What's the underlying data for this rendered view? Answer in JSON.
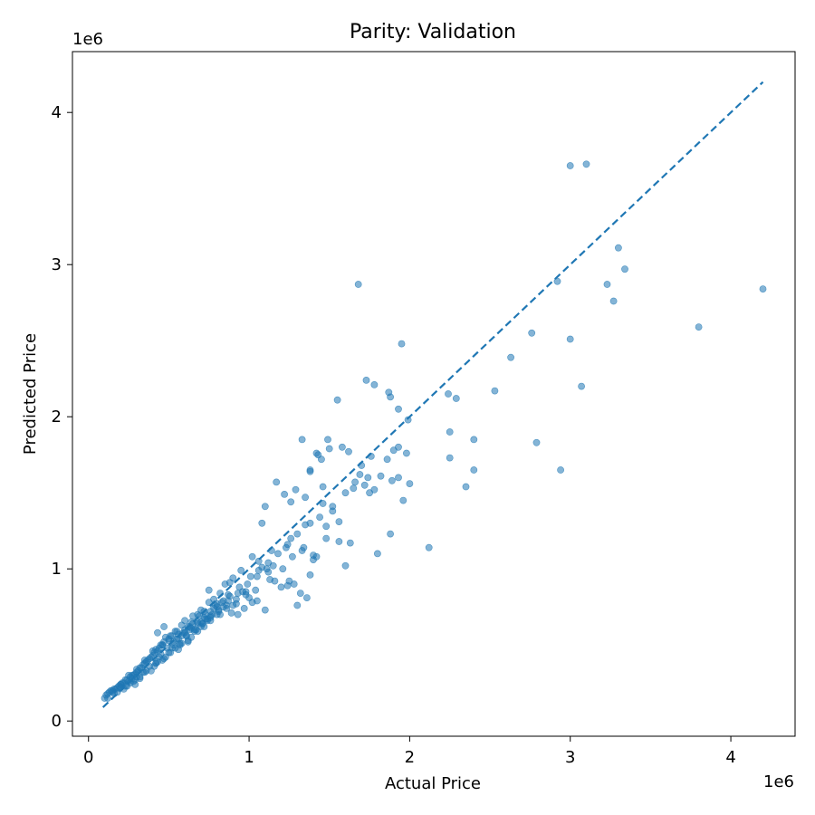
{
  "chart_data": {
    "type": "scatter",
    "title": "Parity: Validation",
    "xlabel": "Actual Price",
    "ylabel": "Predicted Price",
    "x_offset_label": "1e6",
    "y_offset_label": "1e6",
    "xlim": [
      -100000,
      4400000
    ],
    "ylim": [
      -100000,
      4400000
    ],
    "x_ticks": [
      0,
      1000000,
      2000000,
      3000000,
      4000000
    ],
    "x_tick_labels": [
      "0",
      "1",
      "2",
      "3",
      "4"
    ],
    "y_ticks": [
      0,
      1000000,
      2000000,
      3000000,
      4000000
    ],
    "y_tick_labels": [
      "0",
      "1",
      "2",
      "3",
      "4"
    ],
    "grid": false,
    "legend": "none",
    "colors": {
      "points": "#1f77b4",
      "parity_line": "#1f77b4"
    },
    "parity_line": {
      "x": [
        90000,
        4200000
      ],
      "y": [
        90000,
        4200000
      ],
      "style": "dashed"
    },
    "points": {
      "x": [
        3000000,
        3100000,
        1680000,
        3300000,
        3340000,
        3230000,
        3270000,
        2920000,
        4200000,
        3800000,
        2760000,
        3000000,
        1950000,
        2630000,
        3070000,
        1730000,
        1780000,
        1880000,
        1930000,
        2240000,
        2290000,
        1550000,
        2530000,
        1870000,
        1990000,
        2250000,
        2400000,
        2250000,
        2790000,
        2350000,
        2400000,
        2940000,
        1490000,
        1430000,
        1380000,
        1450000,
        1500000,
        1580000,
        1620000,
        1700000,
        1760000,
        1860000,
        1900000,
        1930000,
        1980000,
        2000000,
        1460000,
        1690000,
        1650000,
        1720000,
        1750000,
        1820000,
        1960000,
        1890000,
        1780000,
        1930000,
        2120000,
        1600000,
        1800000,
        1630000,
        1880000,
        1560000,
        1330000,
        1420000,
        1380000,
        1290000,
        1350000,
        1460000,
        1520000,
        1560000,
        1170000,
        1220000,
        1260000,
        1100000,
        1080000,
        1350000,
        1260000,
        1330000,
        1230000,
        1400000,
        1480000,
        1420000,
        1380000,
        1210000,
        1130000,
        1110000,
        1120000,
        1240000,
        1320000,
        1300000,
        1360000,
        1280000,
        1250000,
        1400000,
        950000,
        1020000,
        1060000,
        1140000,
        900000,
        880000,
        940000,
        1010000,
        1080000,
        1160000,
        1200000,
        980000,
        920000,
        1050000,
        1100000,
        1000000,
        850000,
        820000,
        780000,
        750000,
        800000,
        870000,
        930000,
        970000,
        1020000,
        760000,
        720000,
        700000,
        680000,
        650000,
        740000,
        790000,
        840000,
        890000,
        620000,
        600000,
        580000,
        560000,
        540000,
        520000,
        640000,
        690000,
        730000,
        770000,
        810000,
        860000,
        500000,
        480000,
        460000,
        440000,
        420000,
        470000,
        510000,
        550000,
        590000,
        630000,
        670000,
        710000,
        400000,
        380000,
        360000,
        340000,
        320000,
        350000,
        390000,
        430000,
        450000,
        490000,
        530000,
        570000,
        610000,
        300000,
        280000,
        260000,
        240000,
        220000,
        200000,
        180000,
        160000,
        140000,
        120000,
        100000,
        250000,
        270000,
        290000,
        310000,
        330000,
        370000,
        410000,
        230000,
        210000,
        190000,
        170000,
        150000,
        130000,
        110000,
        440000,
        460000,
        520000,
        560000,
        600000,
        640000,
        680000,
        720000,
        760000,
        800000,
        840000,
        880000,
        600000,
        650000,
        700000,
        750000,
        550000,
        500000,
        450000,
        400000,
        350000,
        300000,
        250000,
        200000,
        150000,
        480000,
        530000,
        580000,
        630000,
        680000,
        730000,
        780000,
        830000,
        380000,
        420000,
        340000,
        300000,
        260000,
        220000,
        180000,
        560000,
        620000,
        660000,
        700000,
        740000,
        800000,
        860000,
        920000,
        980000,
        1040000,
        640000,
        580000,
        500000,
        420000,
        460000,
        360000,
        320000,
        280000,
        240000,
        200000,
        160000,
        120000,
        680000,
        720000,
        760000,
        820000,
        900000,
        960000,
        1060000,
        1120000,
        1180000,
        1240000,
        1300000,
        1380000,
        1440000,
        1520000,
        1600000,
        1660000,
        1740000,
        620000,
        540000,
        470000,
        410000,
        350000,
        290000,
        230000,
        390000,
        430000,
        510000,
        570000,
        610000,
        660000,
        710000,
        760000,
        810000,
        870000,
        930000,
        990000,
        1050000,
        1150000,
        1270000,
        1340000,
        1480000,
        430000,
        470000,
        320000,
        290000,
        270000
      ],
      "y": [
        3650000,
        3660000,
        2870000,
        3110000,
        2970000,
        2870000,
        2760000,
        2890000,
        2840000,
        2590000,
        2550000,
        2510000,
        2480000,
        2390000,
        2200000,
        2240000,
        2210000,
        2130000,
        2050000,
        2150000,
        2120000,
        2110000,
        2170000,
        2160000,
        1980000,
        1900000,
        1850000,
        1730000,
        1830000,
        1540000,
        1650000,
        1650000,
        1850000,
        1750000,
        1650000,
        1720000,
        1790000,
        1800000,
        1770000,
        1680000,
        1740000,
        1720000,
        1780000,
        1800000,
        1760000,
        1560000,
        1540000,
        1620000,
        1530000,
        1550000,
        1500000,
        1610000,
        1450000,
        1580000,
        1520000,
        1600000,
        1140000,
        1020000,
        1100000,
        1170000,
        1230000,
        1180000,
        1850000,
        1760000,
        1640000,
        1520000,
        1470000,
        1430000,
        1380000,
        1310000,
        1570000,
        1490000,
        1440000,
        1410000,
        1300000,
        1290000,
        1200000,
        1120000,
        1140000,
        1090000,
        1200000,
        1080000,
        960000,
        1000000,
        930000,
        1000000,
        980000,
        890000,
        840000,
        760000,
        810000,
        900000,
        920000,
        1060000,
        990000,
        1080000,
        1050000,
        1120000,
        940000,
        910000,
        880000,
        950000,
        1010000,
        920000,
        880000,
        850000,
        770000,
        790000,
        730000,
        810000,
        900000,
        840000,
        800000,
        860000,
        770000,
        830000,
        700000,
        740000,
        780000,
        690000,
        720000,
        650000,
        700000,
        640000,
        670000,
        760000,
        750000,
        710000,
        620000,
        600000,
        630000,
        570000,
        590000,
        560000,
        650000,
        690000,
        670000,
        700000,
        720000,
        740000,
        530000,
        550000,
        500000,
        480000,
        470000,
        520000,
        560000,
        540000,
        580000,
        620000,
        600000,
        640000,
        430000,
        410000,
        390000,
        370000,
        350000,
        380000,
        420000,
        460000,
        440000,
        480000,
        520000,
        500000,
        560000,
        320000,
        300000,
        290000,
        270000,
        250000,
        240000,
        220000,
        210000,
        200000,
        180000,
        150000,
        260000,
        280000,
        310000,
        330000,
        350000,
        400000,
        450000,
        270000,
        250000,
        230000,
        210000,
        200000,
        190000,
        170000,
        420000,
        500000,
        480000,
        540000,
        580000,
        610000,
        650000,
        680000,
        720000,
        750000,
        790000,
        820000,
        660000,
        690000,
        730000,
        780000,
        590000,
        540000,
        500000,
        460000,
        400000,
        340000,
        300000,
        240000,
        190000,
        420000,
        500000,
        560000,
        600000,
        640000,
        700000,
        740000,
        780000,
        360000,
        380000,
        320000,
        290000,
        250000,
        210000,
        190000,
        470000,
        530000,
        600000,
        620000,
        660000,
        700000,
        760000,
        800000,
        830000,
        860000,
        550000,
        510000,
        450000,
        380000,
        400000,
        330000,
        290000,
        260000,
        230000,
        220000,
        180000,
        150000,
        590000,
        620000,
        660000,
        700000,
        760000,
        850000,
        990000,
        1040000,
        1100000,
        1160000,
        1230000,
        1300000,
        1340000,
        1410000,
        1500000,
        1570000,
        1600000,
        520000,
        480000,
        410000,
        360000,
        320000,
        270000,
        230000,
        330000,
        390000,
        450000,
        510000,
        560000,
        590000,
        640000,
        680000,
        730000,
        790000,
        840000,
        900000,
        950000,
        1020000,
        1080000,
        1140000,
        1280000,
        580000,
        620000,
        280000,
        240000,
        300000
      ]
    }
  }
}
